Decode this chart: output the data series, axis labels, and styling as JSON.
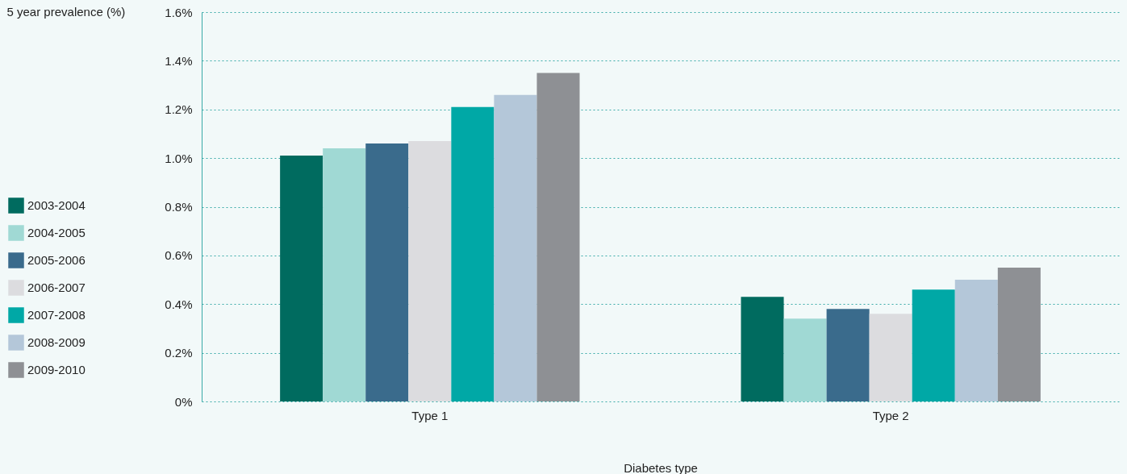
{
  "chart_data": {
    "type": "bar",
    "xlabel": "Diabetes type",
    "ylabel": "5 year prevalence (%)",
    "categories": [
      "Type 1",
      "Type 2"
    ],
    "series": [
      {
        "name": "2003-2004",
        "color": "#006b5f",
        "values": [
          1.01,
          0.43
        ]
      },
      {
        "name": "2004-2005",
        "color": "#a0d9d4",
        "values": [
          1.04,
          0.34
        ]
      },
      {
        "name": "2005-2006",
        "color": "#3a6b8c",
        "values": [
          1.06,
          0.38
        ]
      },
      {
        "name": "2006-2007",
        "color": "#dcdcdf",
        "values": [
          1.07,
          0.36
        ]
      },
      {
        "name": "2007-2008",
        "color": "#00a8a6",
        "values": [
          1.21,
          0.46
        ]
      },
      {
        "name": "2008-2009",
        "color": "#b4c7d9",
        "values": [
          1.26,
          0.5
        ]
      },
      {
        "name": "2009-2010",
        "color": "#8e9094",
        "values": [
          1.35,
          0.55
        ]
      }
    ],
    "ylim": [
      0,
      1.6
    ],
    "yticks": [
      {
        "value": 0,
        "label": "0%"
      },
      {
        "value": 0.2,
        "label": "0.2%"
      },
      {
        "value": 0.4,
        "label": "0.4%"
      },
      {
        "value": 0.6,
        "label": "0.6%"
      },
      {
        "value": 0.8,
        "label": "0.8%"
      },
      {
        "value": 1,
        "label": "1.0%"
      },
      {
        "value": 1.2,
        "label": "1.2%"
      },
      {
        "value": 1.4,
        "label": "1.4%"
      },
      {
        "value": 1.6,
        "label": "1.6%"
      }
    ],
    "grid": "y",
    "legend": "left"
  }
}
